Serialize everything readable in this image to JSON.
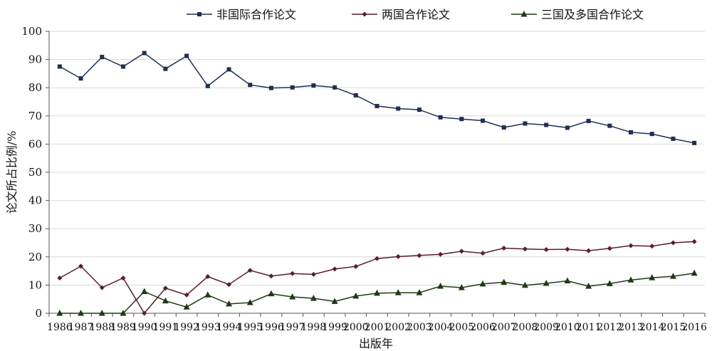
{
  "chart_data": {
    "type": "line",
    "title": "",
    "xlabel": "出版年",
    "ylabel": "论文所占比例/%",
    "ylim": [
      0,
      100
    ],
    "yticks": [
      0,
      10,
      20,
      30,
      40,
      50,
      60,
      70,
      80,
      90,
      100
    ],
    "grid": "horizontal",
    "legend_position": "top",
    "x": [
      "1986",
      "1987",
      "1988",
      "1989",
      "1990",
      "1991",
      "1992",
      "1993",
      "1994",
      "1995",
      "1996",
      "1997",
      "1998",
      "1999",
      "2000",
      "2001",
      "2002",
      "2003",
      "2004",
      "2005",
      "2006",
      "2007",
      "2008",
      "2009",
      "2010",
      "2011",
      "2012",
      "2013",
      "2014",
      "2015",
      "2016"
    ],
    "series": [
      {
        "name": "非国际合作论文",
        "color": "#1f2f4f",
        "marker": "square",
        "values": [
          87.5,
          83.3,
          90.9,
          87.5,
          92.3,
          86.7,
          91.3,
          80.6,
          86.5,
          81.0,
          79.9,
          80.1,
          80.8,
          80.1,
          77.3,
          73.5,
          72.6,
          72.2,
          69.5,
          68.9,
          68.3,
          65.9,
          67.3,
          66.8,
          65.8,
          68.2,
          66.5,
          64.2,
          63.6,
          61.9,
          60.4
        ]
      },
      {
        "name": "两国合作论文",
        "color": "#5a1e2a",
        "marker": "diamond",
        "values": [
          12.5,
          16.7,
          9.1,
          12.5,
          0,
          8.9,
          6.5,
          13.0,
          10.2,
          15.2,
          13.2,
          14.1,
          13.8,
          15.7,
          16.6,
          19.4,
          20.1,
          20.5,
          20.9,
          22.0,
          21.3,
          23.1,
          22.8,
          22.6,
          22.7,
          22.2,
          23.0,
          24.0,
          23.8,
          25.0,
          25.4
        ]
      },
      {
        "name": "三国及多国合作论文",
        "color": "#1e3a14",
        "marker": "triangle",
        "values": [
          0,
          0,
          0,
          0,
          7.7,
          4.4,
          2.2,
          6.5,
          3.3,
          3.8,
          6.9,
          5.8,
          5.3,
          4.2,
          6.1,
          7.1,
          7.3,
          7.3,
          9.6,
          9.1,
          10.4,
          11.0,
          9.9,
          10.6,
          11.5,
          9.6,
          10.5,
          11.8,
          12.6,
          13.1,
          14.2
        ]
      }
    ]
  }
}
